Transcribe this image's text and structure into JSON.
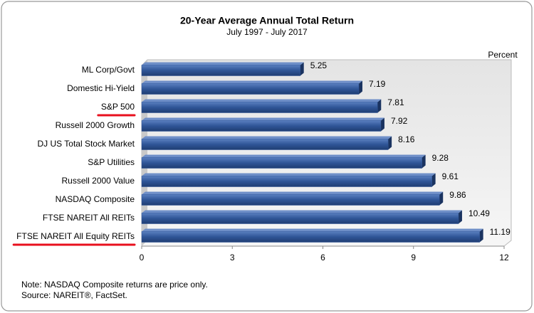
{
  "chart_data": {
    "type": "hbar",
    "title": "20-Year Average Annual Total Return",
    "subtitle": "July 1997 - July 2017",
    "unit_label": "Percent",
    "categories": [
      "ML Corp/Govt",
      "Domestic Hi-Yield",
      "S&P 500",
      "Russell 2000 Growth",
      "DJ US Total Stock Market",
      "S&P Utilities",
      "Russell 2000 Value",
      "NASDAQ Composite",
      "FTSE NAREIT All REITs",
      "FTSE NAREIT All Equity REITs"
    ],
    "values": [
      5.25,
      7.19,
      7.81,
      7.92,
      8.16,
      9.28,
      9.61,
      9.86,
      10.49,
      11.19
    ],
    "color": "#2f5597",
    "xlim": [
      0,
      12
    ],
    "xticks": [
      0,
      3,
      6,
      9,
      12
    ],
    "highlight": [
      2,
      9
    ],
    "highlight_color": "#e8101e",
    "notes": [
      "Note: NASDAQ Composite returns are price only.",
      "Source: NAREIT®, FactSet."
    ]
  }
}
